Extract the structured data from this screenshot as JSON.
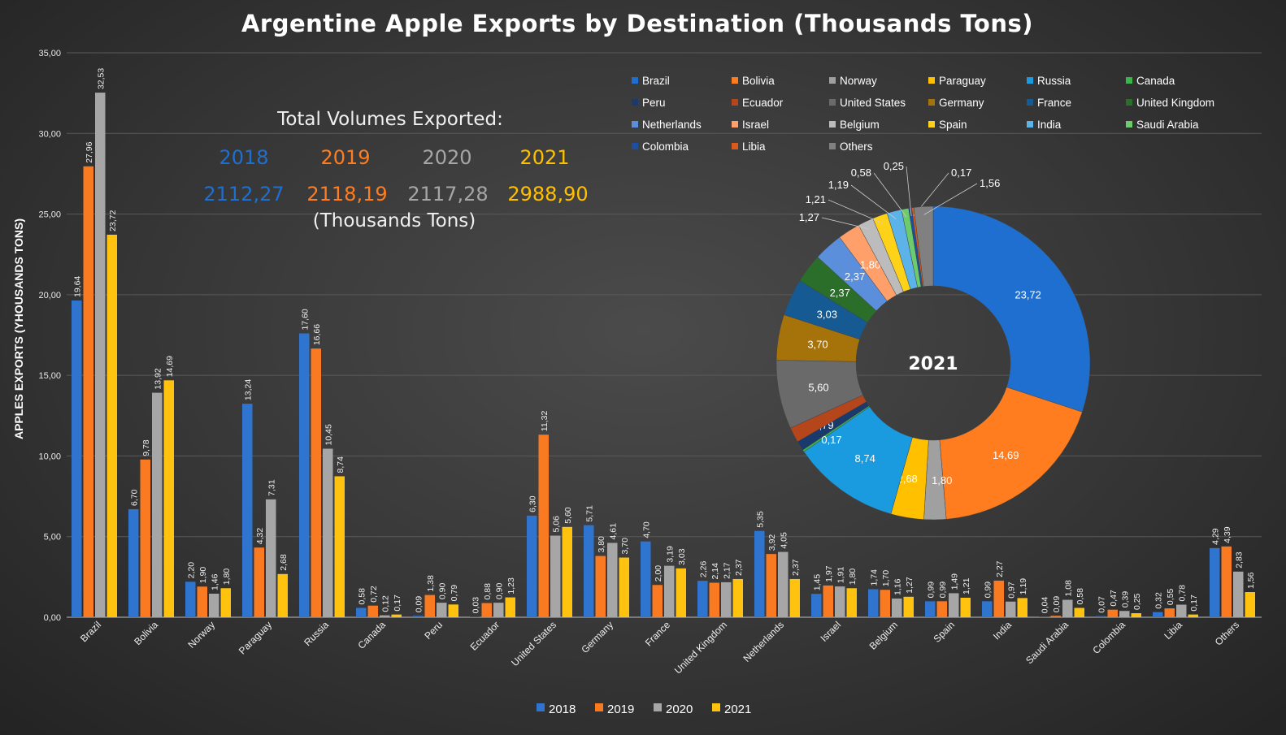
{
  "chart_data": [
    {
      "type": "bar",
      "title": "Argentine Apple Exports by Destination (Thousands Tons)",
      "ylabel": "APPLES EXPORTS (YHOUSANDS TONS)",
      "xlabel": "",
      "ylim": [
        0,
        35
      ],
      "yticks": [
        "0,00",
        "5,00",
        "10,00",
        "15,00",
        "20,00",
        "25,00",
        "30,00",
        "35,00"
      ],
      "grid": true,
      "legend_position": "bottom",
      "categories": [
        "Brazil",
        "Bolivia",
        "Norway",
        "Paraguay",
        "Russia",
        "Canada",
        "Peru",
        "Ecuador",
        "United States",
        "Germany",
        "France",
        "United Kingdom",
        "Netherlands",
        "Israel",
        "Belgium",
        "Spain",
        "India",
        "Saudi Arabia",
        "Colombia",
        "Libia",
        "Others"
      ],
      "series": [
        {
          "name": "2018",
          "color": "#2f74cf",
          "values": [
            19.64,
            6.7,
            2.2,
            13.24,
            17.6,
            0.58,
            0.09,
            0.03,
            6.3,
            5.71,
            4.7,
            2.26,
            5.35,
            1.45,
            1.74,
            0.99,
            0.99,
            0.04,
            0.07,
            0.32,
            4.29
          ]
        },
        {
          "name": "2019",
          "color": "#fa7a22",
          "values": [
            27.96,
            9.78,
            1.9,
            4.32,
            16.66,
            0.72,
            1.38,
            0.88,
            11.32,
            3.8,
            2.0,
            2.14,
            3.92,
            1.97,
            1.7,
            0.99,
            2.27,
            0.09,
            0.47,
            0.55,
            4.39
          ]
        },
        {
          "name": "2020",
          "color": "#a6a6a6",
          "values": [
            32.53,
            13.92,
            1.46,
            7.31,
            10.45,
            0.12,
            0.9,
            0.9,
            5.06,
            4.61,
            3.19,
            2.17,
            4.05,
            1.91,
            1.16,
            1.49,
            0.97,
            1.08,
            0.39,
            0.78,
            2.83
          ]
        },
        {
          "name": "2021",
          "color": "#ffc20e",
          "values": [
            23.72,
            14.69,
            1.8,
            2.68,
            8.74,
            0.17,
            0.79,
            1.23,
            5.6,
            3.7,
            3.03,
            2.37,
            2.37,
            1.8,
            1.27,
            1.21,
            1.19,
            0.58,
            0.25,
            0.17,
            1.56
          ]
        }
      ]
    },
    {
      "type": "pie",
      "title": "2021",
      "labels": [
        "Brazil",
        "Bolivia",
        "Norway",
        "Paraguay",
        "Russia",
        "Canada",
        "Peru",
        "Ecuador",
        "United States",
        "Germany",
        "France",
        "United Kingdom",
        "Netherlands",
        "Israel",
        "Belgium",
        "Spain",
        "India",
        "Saudi Arabia",
        "Colombia",
        "Libia",
        "Others"
      ],
      "values": [
        23.72,
        14.69,
        1.8,
        2.68,
        8.74,
        0.17,
        0.79,
        1.23,
        5.6,
        3.7,
        3.03,
        2.37,
        2.37,
        1.8,
        1.27,
        1.21,
        1.19,
        0.58,
        0.25,
        0.17,
        1.56
      ],
      "colors": [
        "#1f6fd0",
        "#ff7d1f",
        "#a0a0a0",
        "#ffc000",
        "#1a9be0",
        "#3bb54a",
        "#1a3a6e",
        "#b5451b",
        "#6a6a6a",
        "#a6720a",
        "#155a92",
        "#2a6e2a",
        "#5b8fdb",
        "#ff9f6a",
        "#bcbcbc",
        "#ffd21a",
        "#5bb3e8",
        "#6ccb6c",
        "#1c4fa0",
        "#d95a1a",
        "#808080"
      ],
      "legend_position": "top-right"
    }
  ],
  "totals": {
    "heading": "Total Volumes Exported:",
    "unit": "(Thousands Tons)",
    "items": [
      {
        "year": "2018",
        "value": "2112,27",
        "color": "#1f6fd0"
      },
      {
        "year": "2019",
        "value": "2118,19",
        "color": "#ff7d1f"
      },
      {
        "year": "2020",
        "value": "2117,28",
        "color": "#a6a6a6"
      },
      {
        "year": "2021",
        "value": "2988,90",
        "color": "#ffc000"
      }
    ]
  }
}
